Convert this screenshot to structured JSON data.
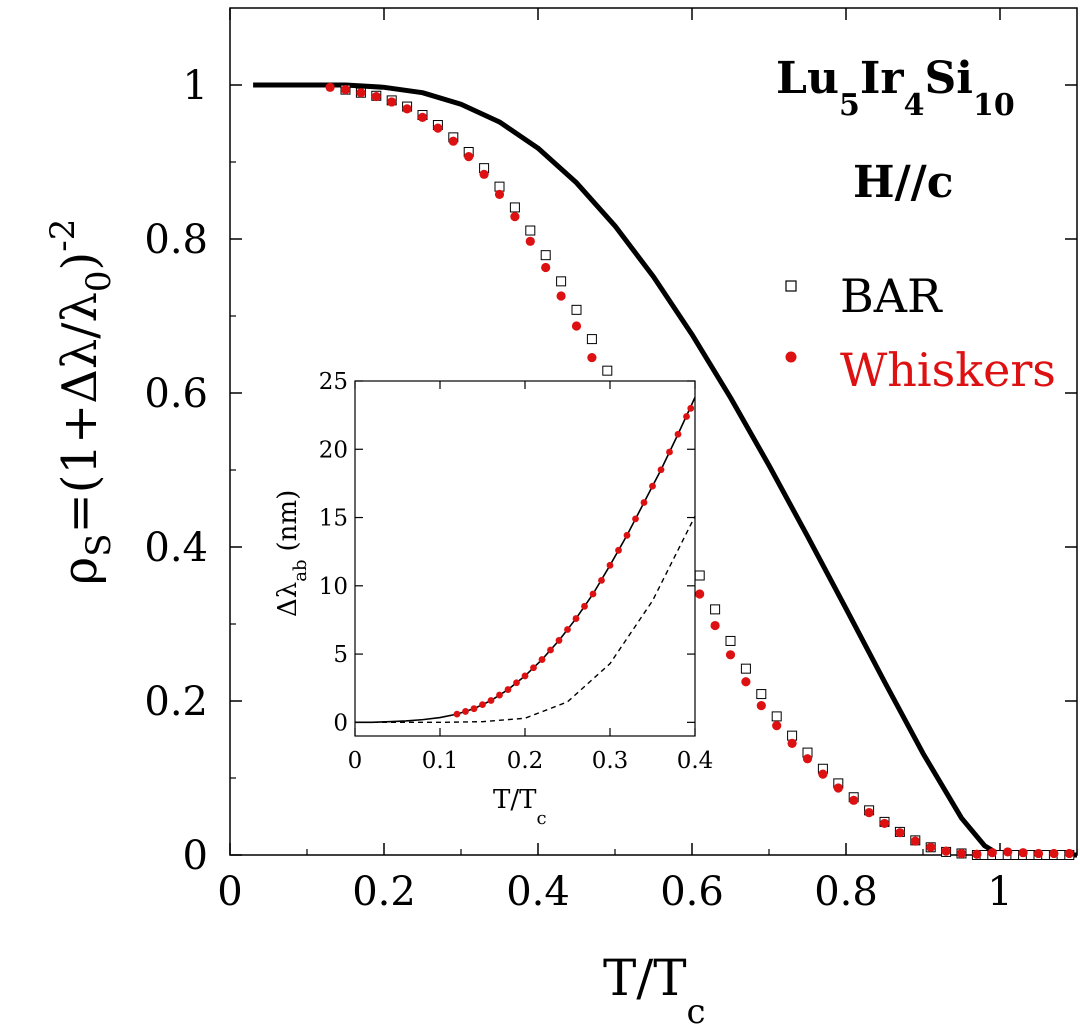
{
  "colors": {
    "bar": "#000000",
    "whiskers": "#dd1111",
    "curve": "#000000"
  },
  "chart_data": [
    {
      "type": "scatter",
      "panel": "main",
      "xlabel": {
        "main": "T/T",
        "sub": "c"
      },
      "ylabel": {
        "rho": "ρ",
        "rho_sub": "S",
        "expr": "=(1+Δλ/λ",
        "lambda_sub": "0",
        "close": ")",
        "exp": "-2"
      },
      "xlim": [
        0,
        1.1
      ],
      "ylim": [
        0,
        1.1
      ],
      "x_ticks": [
        0,
        0.2,
        0.4,
        0.6,
        0.8,
        1
      ],
      "x_tick_labels": [
        "0",
        "0.2",
        "0.4",
        "0.6",
        "0.8",
        "1"
      ],
      "y_ticks": [
        0,
        0.2,
        0.4,
        0.6,
        0.8,
        1
      ],
      "y_tick_labels": [
        "0",
        "0.2",
        "0.4",
        "0.6",
        "0.8",
        "1"
      ],
      "annotation": {
        "formula_parts": [
          {
            "text": "Lu",
            "sub": false
          },
          {
            "text": "5",
            "sub": true
          },
          {
            "text": "Ir",
            "sub": false
          },
          {
            "text": "4",
            "sub": true
          },
          {
            "text": "Si",
            "sub": false
          },
          {
            "text": "10",
            "sub": true
          }
        ],
        "field": "H//c"
      },
      "legend": {
        "placement": "right",
        "entries": [
          {
            "label": "BAR",
            "marker": "open-square"
          },
          {
            "label": "Whiskers",
            "marker": "filled-circle"
          }
        ]
      },
      "series": [
        {
          "name": "BAR",
          "marker": "open-square",
          "x": [
            0.15,
            0.17,
            0.19,
            0.21,
            0.23,
            0.25,
            0.27,
            0.29,
            0.31,
            0.33,
            0.35,
            0.37,
            0.39,
            0.41,
            0.43,
            0.45,
            0.47,
            0.49,
            0.51,
            0.53,
            0.55,
            0.57,
            0.59,
            0.61,
            0.63,
            0.65,
            0.67,
            0.69,
            0.71,
            0.73,
            0.75,
            0.77,
            0.79,
            0.81,
            0.83,
            0.85,
            0.87,
            0.89,
            0.91,
            0.93,
            0.95,
            0.97,
            0.98,
            0.99,
            1.0,
            1.01,
            1.02,
            1.03,
            1.04,
            1.05,
            1.06,
            1.07,
            1.08,
            1.09
          ],
          "y": [
            0.994,
            0.99,
            0.986,
            0.98,
            0.972,
            0.961,
            0.948,
            0.932,
            0.913,
            0.892,
            0.868,
            0.841,
            0.811,
            0.779,
            0.745,
            0.708,
            0.67,
            0.629,
            0.587,
            0.544,
            0.499,
            0.454,
            0.408,
            0.363,
            0.319,
            0.278,
            0.242,
            0.209,
            0.18,
            0.155,
            0.133,
            0.112,
            0.093,
            0.075,
            0.058,
            0.043,
            0.03,
            0.019,
            0.01,
            0.004,
            0.002,
            0.0,
            0.0,
            0.0,
            0.0,
            0.0,
            0.0,
            0.0,
            0.0,
            0.0,
            0.0,
            0.0,
            0.0,
            0.0
          ]
        },
        {
          "name": "Whiskers",
          "marker": "filled-circle",
          "x": [
            0.13,
            0.15,
            0.17,
            0.19,
            0.21,
            0.23,
            0.25,
            0.27,
            0.29,
            0.31,
            0.33,
            0.35,
            0.37,
            0.39,
            0.41,
            0.43,
            0.45,
            0.47,
            0.49,
            0.51,
            0.53,
            0.55,
            0.57,
            0.59,
            0.61,
            0.63,
            0.65,
            0.67,
            0.69,
            0.71,
            0.73,
            0.75,
            0.77,
            0.79,
            0.81,
            0.83,
            0.85,
            0.87,
            0.89,
            0.91,
            0.93,
            0.95,
            0.97,
            0.99,
            1.01,
            1.03,
            1.05,
            1.07,
            1.09
          ],
          "y": [
            0.997,
            0.994,
            0.99,
            0.985,
            0.978,
            0.969,
            0.958,
            0.944,
            0.927,
            0.907,
            0.884,
            0.858,
            0.829,
            0.797,
            0.763,
            0.726,
            0.687,
            0.646,
            0.604,
            0.56,
            0.516,
            0.471,
            0.426,
            0.382,
            0.339,
            0.298,
            0.26,
            0.225,
            0.194,
            0.168,
            0.145,
            0.125,
            0.105,
            0.087,
            0.071,
            0.055,
            0.041,
            0.029,
            0.018,
            0.01,
            0.005,
            0.002,
            0.001,
            0.003,
            0.004,
            0.003,
            0.002,
            0.002,
            0.002
          ]
        },
        {
          "name": "",
          "style": "solid-line",
          "x": [
            0.03,
            0.15,
            0.2,
            0.25,
            0.3,
            0.35,
            0.4,
            0.45,
            0.5,
            0.55,
            0.6,
            0.65,
            0.7,
            0.75,
            0.8,
            0.85,
            0.9,
            0.95,
            0.98,
            1.0,
            1.1
          ],
          "y": [
            1.0,
            1.0,
            0.997,
            0.99,
            0.975,
            0.952,
            0.918,
            0.873,
            0.817,
            0.751,
            0.676,
            0.594,
            0.506,
            0.414,
            0.32,
            0.225,
            0.132,
            0.048,
            0.012,
            0.0,
            0.0
          ]
        }
      ]
    },
    {
      "type": "line",
      "panel": "inset",
      "xlabel": {
        "main": "T/T",
        "sub": "c"
      },
      "ylabel": {
        "main": "Δλ",
        "sub": "ab",
        "unit": "(nm)"
      },
      "xlim": [
        0,
        0.4
      ],
      "ylim": [
        -1,
        25
      ],
      "x_ticks": [
        0,
        0.1,
        0.2,
        0.3,
        0.4
      ],
      "x_tick_labels": [
        "0",
        "0.1",
        "0.2",
        "0.3",
        "0.4"
      ],
      "y_ticks": [
        0,
        5,
        10,
        15,
        20,
        25
      ],
      "y_tick_labels": [
        "0",
        "5",
        "10",
        "15",
        "20",
        "25"
      ],
      "series": [
        {
          "name": "",
          "style": "solid-line",
          "x": [
            0,
            0.02,
            0.04,
            0.06,
            0.08,
            0.1,
            0.12,
            0.14,
            0.16,
            0.18,
            0.2,
            0.22,
            0.24,
            0.26,
            0.28,
            0.3,
            0.32,
            0.34,
            0.36,
            0.38,
            0.4
          ],
          "y": [
            0.0,
            0.0,
            0.05,
            0.1,
            0.2,
            0.35,
            0.6,
            1.0,
            1.6,
            2.4,
            3.4,
            4.6,
            6.0,
            7.6,
            9.4,
            11.5,
            13.7,
            16.1,
            18.5,
            21.1,
            23.8
          ]
        },
        {
          "name": "",
          "style": "dashed-line",
          "x": [
            0,
            0.05,
            0.1,
            0.15,
            0.2,
            0.25,
            0.3,
            0.35,
            0.4
          ],
          "y": [
            0.0,
            0.0,
            0.0,
            0.05,
            0.3,
            1.5,
            4.3,
            8.9,
            15.1
          ]
        },
        {
          "name": "Whiskers",
          "marker": "filled-circle",
          "x": [
            0.12,
            0.13,
            0.14,
            0.15,
            0.16,
            0.17,
            0.18,
            0.19,
            0.2,
            0.21,
            0.22,
            0.23,
            0.24,
            0.25,
            0.26,
            0.27,
            0.28,
            0.29,
            0.3,
            0.31,
            0.32,
            0.33,
            0.34,
            0.35,
            0.36,
            0.37,
            0.38,
            0.39,
            0.395
          ],
          "y": [
            0.6,
            0.8,
            1.0,
            1.3,
            1.6,
            2.0,
            2.4,
            2.9,
            3.4,
            4.0,
            4.6,
            5.3,
            6.0,
            6.8,
            7.6,
            8.5,
            9.4,
            10.4,
            11.5,
            12.6,
            13.7,
            14.9,
            16.1,
            17.3,
            18.5,
            19.8,
            21.1,
            22.4,
            23.0
          ]
        }
      ]
    }
  ]
}
